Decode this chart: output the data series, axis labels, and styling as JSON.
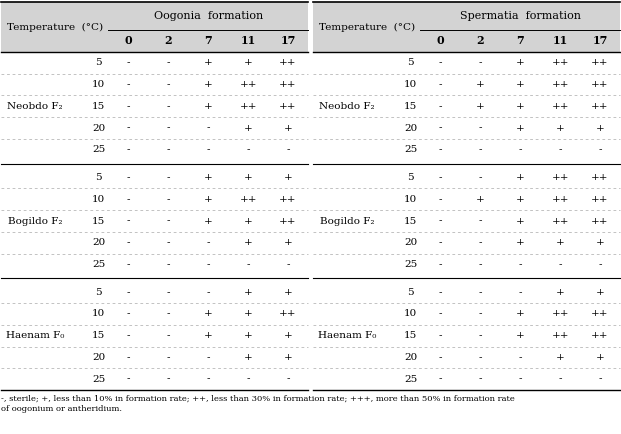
{
  "header_bg": "#d3d3d3",
  "strains": [
    "Neobdo F₂",
    "Bogildo F₂",
    "Haenam F₀"
  ],
  "temps": [
    "5",
    "10",
    "15",
    "20",
    "25"
  ],
  "days": [
    "0",
    "2",
    "7",
    "11",
    "17"
  ],
  "oogonia": [
    [
      "-",
      "-",
      "+",
      "+",
      "++"
    ],
    [
      "-",
      "-",
      "+",
      "++",
      "++"
    ],
    [
      "-",
      "-",
      "+",
      "++",
      "++"
    ],
    [
      "-",
      "-",
      "-",
      "+",
      "+"
    ],
    [
      "-",
      "-",
      "-",
      "-",
      "-"
    ],
    [
      "-",
      "-",
      "+",
      "+",
      "+"
    ],
    [
      "-",
      "-",
      "+",
      "++",
      "++"
    ],
    [
      "-",
      "-",
      "+",
      "+",
      "++"
    ],
    [
      "-",
      "-",
      "-",
      "+",
      "+"
    ],
    [
      "-",
      "-",
      "-",
      "-",
      "-"
    ],
    [
      "-",
      "-",
      "-",
      "+",
      "+"
    ],
    [
      "-",
      "-",
      "+",
      "+",
      "++"
    ],
    [
      "-",
      "-",
      "+",
      "+",
      "+"
    ],
    [
      "-",
      "-",
      "-",
      "+",
      "+"
    ],
    [
      "-",
      "-",
      "-",
      "-",
      "-"
    ]
  ],
  "spermatia": [
    [
      "-",
      "-",
      "+",
      "++",
      "++"
    ],
    [
      "-",
      "+",
      "+",
      "++",
      "++"
    ],
    [
      "-",
      "+",
      "+",
      "++",
      "++"
    ],
    [
      "-",
      "-",
      "+",
      "+",
      "+"
    ],
    [
      "-",
      "-",
      "-",
      "-",
      "-"
    ],
    [
      "-",
      "-",
      "+",
      "++",
      "++"
    ],
    [
      "-",
      "+",
      "+",
      "++",
      "++"
    ],
    [
      "-",
      "-",
      "+",
      "++",
      "++"
    ],
    [
      "-",
      "-",
      "+",
      "+",
      "+"
    ],
    [
      "-",
      "-",
      "-",
      "-",
      "-"
    ],
    [
      "-",
      "-",
      "-",
      "+",
      "+"
    ],
    [
      "-",
      "-",
      "+",
      "++",
      "++"
    ],
    [
      "-",
      "-",
      "+",
      "++",
      "++"
    ],
    [
      "-",
      "-",
      "-",
      "+",
      "+"
    ],
    [
      "-",
      "-",
      "-",
      "-",
      "-"
    ]
  ],
  "footnote_line1": "-, sterile; +, less than 10% in formation rate; ++, less than 30% in formation rate; +++, more than 50% in formation rate",
  "footnote_line2": "of oogonium or antheridium."
}
